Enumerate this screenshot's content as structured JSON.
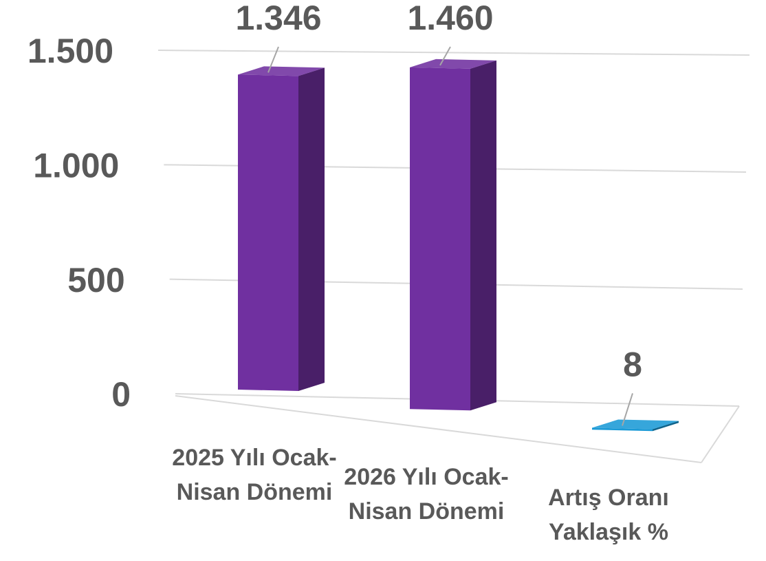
{
  "chart_data": {
    "type": "bar3d",
    "categories": [
      "2025 Yılı Ocak-Nisan Dönemi",
      "2026 Yılı Ocak-Nisan Dönemi",
      "Artış Oranı Yaklaşık %"
    ],
    "values": [
      1346,
      1460,
      8
    ],
    "value_labels": [
      "1.346",
      "1.460",
      "8"
    ],
    "colors": [
      "#7030a0",
      "#7030a0",
      "#1b9ad6"
    ],
    "ylim": [
      0,
      1500
    ],
    "yticks": [
      0,
      500,
      {
        "value": 1000,
        "label": "1.000"
      },
      {
        "value": 1500,
        "label": "1.500"
      }
    ],
    "grid": true
  }
}
